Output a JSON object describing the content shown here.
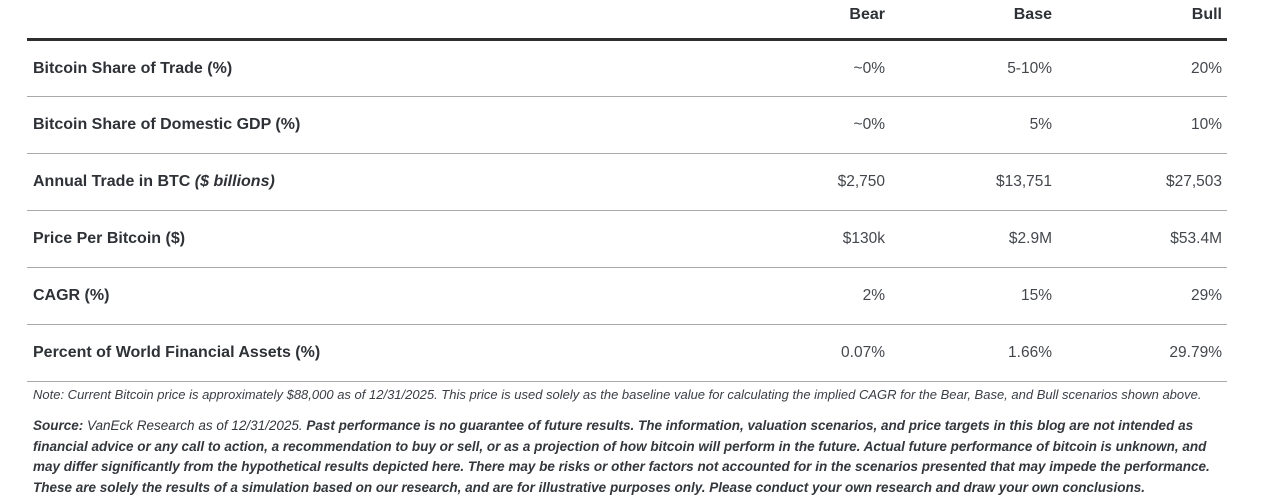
{
  "table": {
    "columns": [
      "Bear",
      "Base",
      "Bull"
    ],
    "rows": [
      {
        "label": "Bitcoin Share of Trade (%)",
        "values": [
          "~0%",
          "5-10%",
          "20%"
        ]
      },
      {
        "label": "Bitcoin Share of Domestic GDP (%)",
        "values": [
          "~0%",
          "5%",
          "10%"
        ]
      },
      {
        "label": "Annual Trade in BTC",
        "label_italic": "($ billions)",
        "values": [
          "$2,750",
          "$13,751",
          "$27,503"
        ]
      },
      {
        "label": "Price Per Bitcoin ($)",
        "values": [
          "$130k",
          "$2.9M",
          "$53.4M"
        ]
      },
      {
        "label": "CAGR (%)",
        "values": [
          "2%",
          "15%",
          "29%"
        ]
      },
      {
        "label": "Percent of World Financial Assets (%)",
        "values": [
          "0.07%",
          "1.66%",
          "29.79%"
        ]
      }
    ]
  },
  "note": "Note: Current Bitcoin price is approximately $88,000 as of 12/31/2025. This price is used solely as the baseline value for calculating the implied CAGR for the Bear, Base, and Bull scenarios shown above.",
  "source": {
    "label": "Source:",
    "plain": " VanEck Research as of 12/31/2025. ",
    "bold": "Past performance is no guarantee of future results. The information, valuation scenarios, and price targets in this blog are not intended as financial advice or any call to action, a recommendation to buy or sell, or as a projection of how bitcoin will perform in the future. Actual future performance of bitcoin is unknown, and may differ significantly from the hypothetical results depicted here. There may be risks or other factors not accounted for in the scenarios presented that may impede the performance. These are solely the results of a simulation based on our research, and are for illustrative purposes only. Please conduct your own research and draw your own conclusions."
  },
  "colors": {
    "rule_dark": "#2e2e2e",
    "rule_light": "#a9a9a9",
    "text_label": "#2e3136",
    "text_value": "#43474c"
  },
  "chart_data": {
    "type": "table",
    "title": "",
    "columns": [
      "",
      "Bear",
      "Base",
      "Bull"
    ],
    "rows": [
      [
        "Bitcoin Share of Trade (%)",
        "~0%",
        "5-10%",
        "20%"
      ],
      [
        "Bitcoin Share of Domestic GDP (%)",
        "~0%",
        "5%",
        "10%"
      ],
      [
        "Annual Trade in BTC ($ billions)",
        "$2,750",
        "$13,751",
        "$27,503"
      ],
      [
        "Price Per Bitcoin ($)",
        "$130k",
        "$2.9M",
        "$53.4M"
      ],
      [
        "CAGR (%)",
        "2%",
        "15%",
        "29%"
      ],
      [
        "Percent of World Financial Assets (%)",
        "0.07%",
        "1.66%",
        "29.79%"
      ]
    ],
    "note": "Note: Current Bitcoin price is approximately $88,000 as of 12/31/2025. This price is used solely as the baseline value for calculating the implied CAGR for the Bear, Base, and Bull scenarios shown above.",
    "source": "Source: VanEck Research as of 12/31/2025. Past performance is no guarantee of future results. The information, valuation scenarios, and price targets in this blog are not intended as financial advice or any call to action, a recommendation to buy or sell, or as a projection of how bitcoin will perform in the future. Actual future performance of bitcoin is unknown, and may differ significantly from the hypothetical results depicted here. There may be risks or other factors not accounted for in the scenarios presented that may impede the performance. These are solely the results of a simulation based on our research, and are for illustrative purposes only. Please conduct your own research and draw your own conclusions."
  }
}
